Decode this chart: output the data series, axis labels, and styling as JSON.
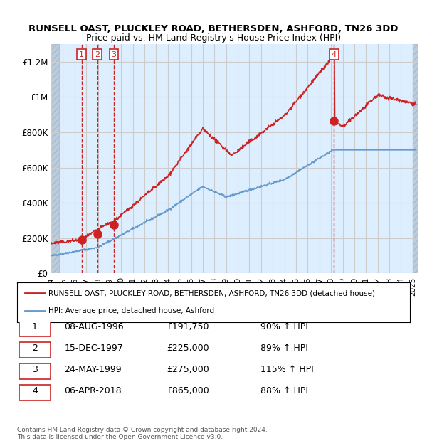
{
  "title1": "RUNSELL OAST, PLUCKLEY ROAD, BETHERSDEN, ASHFORD, TN26 3DD",
  "title2": "Price paid vs. HM Land Registry's House Price Index (HPI)",
  "ylabel_ticks": [
    "£0",
    "£200K",
    "£400K",
    "£600K",
    "£800K",
    "£1M",
    "£1.2M"
  ],
  "ylabel_values": [
    0,
    200000,
    400000,
    600000,
    800000,
    1000000,
    1200000
  ],
  "ylim": [
    0,
    1300000
  ],
  "xlim_start": 1994.0,
  "xlim_end": 2025.5,
  "sale_points": [
    {
      "num": 1,
      "year": 1996.6,
      "price": 191750
    },
    {
      "num": 2,
      "year": 1997.95,
      "price": 225000
    },
    {
      "num": 3,
      "year": 1999.38,
      "price": 275000
    },
    {
      "num": 4,
      "year": 2018.26,
      "price": 865000
    }
  ],
  "hpi_color": "#6699cc",
  "price_color": "#cc2222",
  "dashed_color": "#cc2222",
  "bg_color": "#ddeeff",
  "hatch_color": "#bbccdd",
  "grid_color": "#cccccc",
  "legend_line1": "RUNSELL OAST, PLUCKLEY ROAD, BETHERSDEN, ASHFORD, TN26 3DD (detached house)",
  "legend_line2": "HPI: Average price, detached house, Ashford",
  "footer1": "Contains HM Land Registry data © Crown copyright and database right 2024.",
  "footer2": "This data is licensed under the Open Government Licence v3.0.",
  "table_rows": [
    [
      "1",
      "08-AUG-1996",
      "£191,750",
      "90% ↑ HPI"
    ],
    [
      "2",
      "15-DEC-1997",
      "£225,000",
      "89% ↑ HPI"
    ],
    [
      "3",
      "24-MAY-1999",
      "£275,000",
      "115% ↑ HPI"
    ],
    [
      "4",
      "06-APR-2018",
      "£865,000",
      "88% ↑ HPI"
    ]
  ]
}
